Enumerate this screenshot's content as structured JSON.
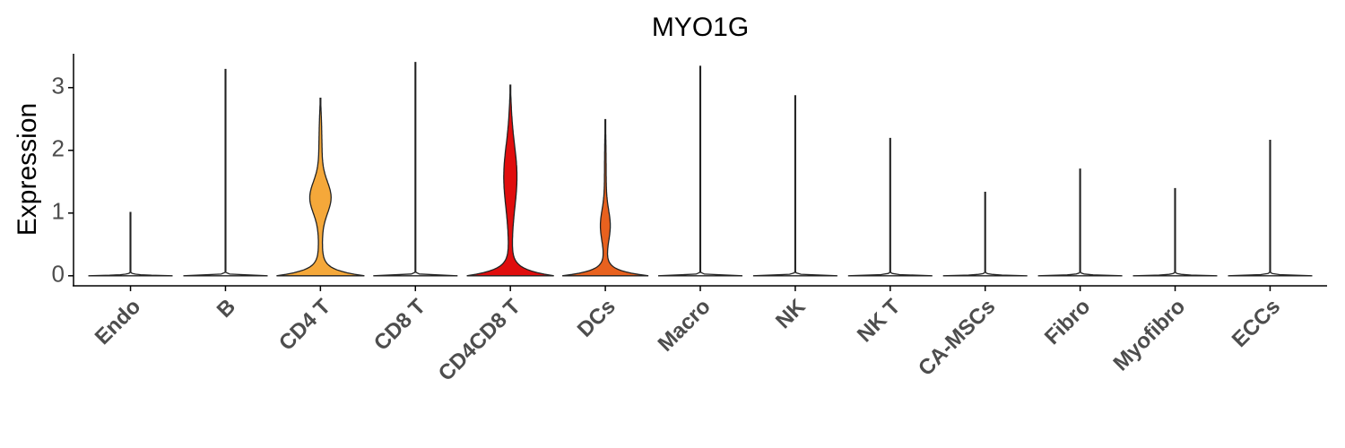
{
  "chart_data": {
    "type": "violin",
    "title": "MYO1G",
    "y_label": "Expression",
    "categories": [
      "Endo",
      "B",
      "CD4 T",
      "CD8 T",
      "CD4CD8 T",
      "DCs",
      "Macro",
      "NK",
      "NK T",
      "CA-MSCs",
      "Fibro",
      "Myofibro",
      "ECCs"
    ],
    "values": [
      1.01,
      3.29,
      2.83,
      3.4,
      3.04,
      2.49,
      3.34,
      2.87,
      2.19,
      1.33,
      1.7,
      1.39,
      2.16
    ],
    "colors": [
      "#ffffff",
      "#ffffff",
      "#f5a83a",
      "#ffffff",
      "#e00d0d",
      "#e8611e",
      "#ffffff",
      "#ffffff",
      "#ffffff",
      "#ffffff",
      "#ffffff",
      "#ffffff",
      "#ffffff"
    ],
    "ylim": [
      -0.16,
      3.54
    ],
    "yticks": [
      0,
      1,
      2,
      3
    ]
  }
}
